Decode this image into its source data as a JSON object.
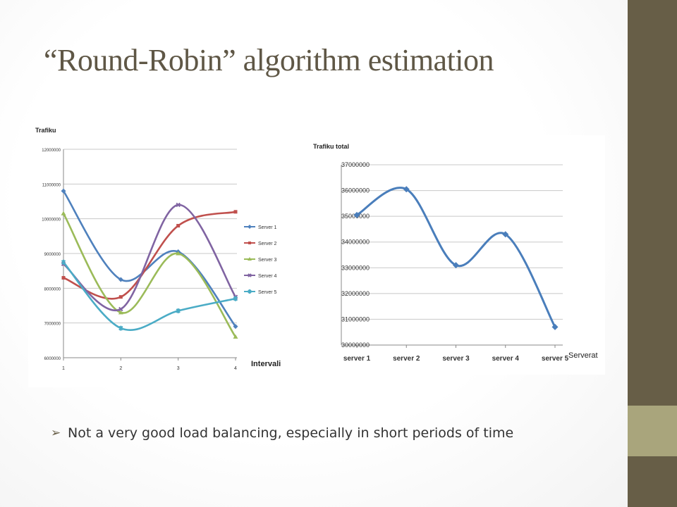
{
  "slide": {
    "title": "“Round-Robin” algorithm estimation",
    "bullet": "Not a very good load balancing, especially in short periods of time",
    "bullet_marker": "➢",
    "colors": {
      "sidebar_dark": "#675e47",
      "sidebar_light": "#a9a57c",
      "title": "#5f5746"
    }
  },
  "chart_data": [
    {
      "type": "line",
      "ylabel": "Trafiku",
      "xlabel": "Intervali",
      "x": [
        "1",
        "2",
        "3",
        "4"
      ],
      "ylim": [
        6000000,
        12000000
      ],
      "yticks": [
        "6000000",
        "7000000",
        "8000000",
        "9000000",
        "10000000",
        "11000000",
        "12000000"
      ],
      "grid": true,
      "legend_position": "right",
      "series": [
        {
          "name": "Server 1",
          "color": "#4f81bd",
          "marker": "diamond",
          "values": [
            10800000,
            8250000,
            9050000,
            6900000
          ]
        },
        {
          "name": "Server 2",
          "color": "#c0504d",
          "marker": "square",
          "values": [
            8300000,
            7750000,
            9800000,
            10200000
          ]
        },
        {
          "name": "Server 3",
          "color": "#9bbb59",
          "marker": "triangle",
          "values": [
            10150000,
            7300000,
            9000000,
            6600000
          ]
        },
        {
          "name": "Server 4",
          "color": "#8064a2",
          "marker": "x",
          "values": [
            8700000,
            7400000,
            10400000,
            7750000
          ]
        },
        {
          "name": "Server 5",
          "color": "#4bacc6",
          "marker": "star",
          "values": [
            8750000,
            6850000,
            7350000,
            7700000
          ]
        }
      ]
    },
    {
      "type": "line",
      "ylabel": "Trafiku total",
      "xlabel": "Serverat",
      "x": [
        "server 1",
        "server 2",
        "server 3",
        "server 4",
        "server 5"
      ],
      "ylim": [
        30000000,
        37000000
      ],
      "yticks": [
        "30000000",
        "31000000",
        "32000000",
        "33000000",
        "34000000",
        "35000000",
        "36000000",
        "37000000"
      ],
      "grid": true,
      "series": [
        {
          "color": "#4a7ebb",
          "marker": "diamond",
          "values": [
            35050000,
            36050000,
            33100000,
            34300000,
            30700000
          ]
        }
      ]
    }
  ]
}
